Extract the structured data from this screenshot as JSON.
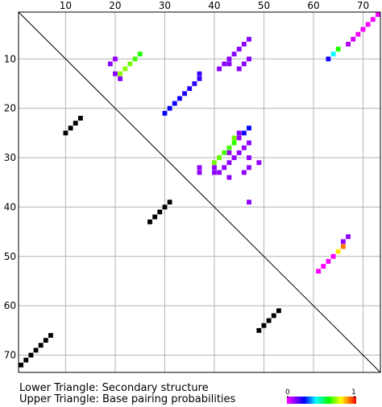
{
  "chart_data": {
    "type": "heatmap",
    "n": 73,
    "x_ticks": [
      10,
      20,
      30,
      40,
      50,
      60,
      70
    ],
    "y_ticks": [
      10,
      20,
      30,
      40,
      50,
      60,
      70
    ],
    "grid": true,
    "diagonal_line": true,
    "lower_triangle": {
      "label": "Lower Triangle: Secondary structure",
      "color": "#000000",
      "cells": [
        [
          22,
          13
        ],
        [
          23,
          12
        ],
        [
          24,
          11
        ],
        [
          25,
          10
        ],
        [
          39,
          31
        ],
        [
          40,
          30
        ],
        [
          41,
          29
        ],
        [
          42,
          28
        ],
        [
          43,
          27
        ],
        [
          61,
          53
        ],
        [
          62,
          52
        ],
        [
          63,
          51
        ],
        [
          64,
          50
        ],
        [
          65,
          49
        ],
        [
          66,
          7
        ],
        [
          67,
          6
        ],
        [
          68,
          5
        ],
        [
          69,
          4
        ],
        [
          70,
          3
        ],
        [
          71,
          2
        ],
        [
          72,
          1
        ]
      ]
    },
    "upper_triangle": {
      "label": "Upper Triangle: Base pairing probabilities",
      "cells": [
        [
          1,
          73,
          0.99
        ],
        [
          2,
          72,
          0.99
        ],
        [
          3,
          71,
          0.99
        ],
        [
          4,
          70,
          0.99
        ],
        [
          5,
          69,
          0.99
        ],
        [
          6,
          68,
          0.95
        ],
        [
          7,
          67,
          0.9
        ],
        [
          8,
          65,
          0.38
        ],
        [
          9,
          64,
          0.55
        ],
        [
          10,
          63,
          0.72
        ],
        [
          9,
          25,
          0.38
        ],
        [
          10,
          24,
          0.35
        ],
        [
          11,
          23,
          0.32
        ],
        [
          12,
          22,
          0.3
        ],
        [
          13,
          21,
          0.3
        ],
        [
          10,
          20,
          0.87
        ],
        [
          11,
          19,
          0.85
        ],
        [
          13,
          20,
          0.85
        ],
        [
          14,
          21,
          0.85
        ],
        [
          6,
          47,
          0.85
        ],
        [
          7,
          46,
          0.85
        ],
        [
          8,
          45,
          0.85
        ],
        [
          9,
          44,
          0.85
        ],
        [
          10,
          43,
          0.85
        ],
        [
          11,
          42,
          0.85
        ],
        [
          12,
          41,
          0.85
        ],
        [
          10,
          47,
          0.85
        ],
        [
          11,
          46,
          0.85
        ],
        [
          12,
          45,
          0.85
        ],
        [
          11,
          43,
          0.85
        ],
        [
          13,
          37,
          0.76
        ],
        [
          14,
          37,
          0.76
        ],
        [
          15,
          36,
          0.75
        ],
        [
          16,
          35,
          0.74
        ],
        [
          17,
          34,
          0.73
        ],
        [
          18,
          33,
          0.72
        ],
        [
          19,
          32,
          0.71
        ],
        [
          20,
          31,
          0.71
        ],
        [
          21,
          30,
          0.7
        ],
        [
          24,
          47,
          0.7
        ],
        [
          25,
          46,
          0.72
        ],
        [
          26,
          45,
          0.87
        ],
        [
          27,
          44,
          0.37
        ],
        [
          28,
          43,
          0.35
        ],
        [
          29,
          42,
          0.35
        ],
        [
          30,
          41,
          0.33
        ],
        [
          31,
          40,
          0.32
        ],
        [
          25,
          45,
          0.85
        ],
        [
          26,
          44,
          0.32
        ],
        [
          27,
          47,
          0.86
        ],
        [
          28,
          46,
          0.86
        ],
        [
          29,
          45,
          0.86
        ],
        [
          29,
          43,
          0.86
        ],
        [
          30,
          44,
          0.86
        ],
        [
          31,
          43,
          0.86
        ],
        [
          32,
          42,
          0.86
        ],
        [
          32,
          40,
          0.86
        ],
        [
          33,
          40,
          0.86
        ],
        [
          33,
          41,
          0.86
        ],
        [
          34,
          43,
          0.86
        ],
        [
          32,
          47,
          0.86
        ],
        [
          33,
          46,
          0.86
        ],
        [
          32,
          37,
          0.86
        ],
        [
          33,
          37,
          0.86
        ],
        [
          31,
          49,
          0.86
        ],
        [
          30,
          47,
          0.86
        ],
        [
          39,
          47,
          0.86
        ],
        [
          46,
          67,
          0.86
        ],
        [
          47,
          66,
          0.86
        ],
        [
          48,
          66,
          0.1
        ],
        [
          49,
          65,
          0.2
        ],
        [
          50,
          64,
          0.99
        ],
        [
          51,
          63,
          0.99
        ],
        [
          52,
          62,
          0.99
        ],
        [
          53,
          61,
          0.99
        ]
      ]
    },
    "colorbar": {
      "min_label": "0",
      "max_label": "1",
      "colors": [
        "#0000ff",
        "#00ffff",
        "#00ff00",
        "#ffff00",
        "#ff0000"
      ],
      "lead_colors": [
        "#ff00ff",
        "#8800ff"
      ]
    }
  }
}
